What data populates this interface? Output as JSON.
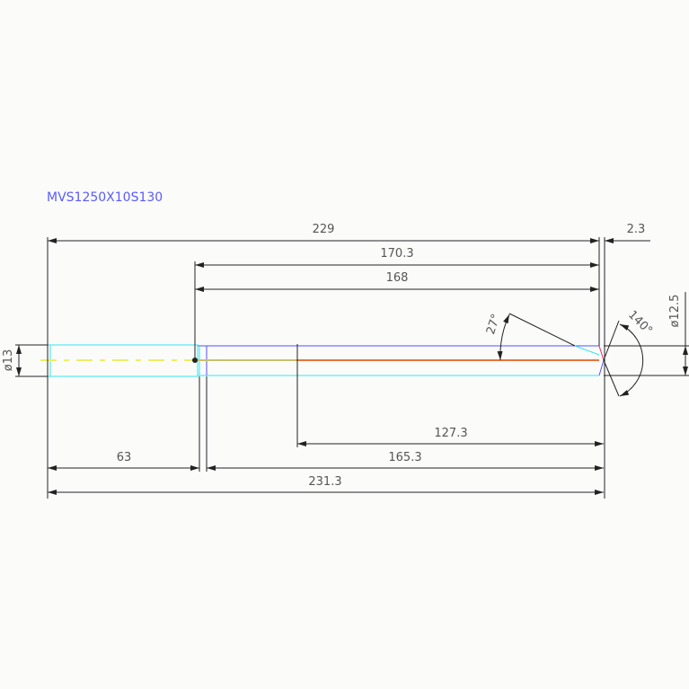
{
  "title": "MVS1250X10S130",
  "colors": {
    "outline": "#33e6f0",
    "body_top": "#5050ff",
    "centerline_shank": "#eeee66",
    "centerline_body": "#e8743a",
    "dimension": "#222222",
    "title": "#5a5aff"
  },
  "dimensions": {
    "overall_229": "229",
    "tip_2_3": "2.3",
    "len_170_3": "170.3",
    "len_168": "168",
    "len_127_3": "127.3",
    "shank_63": "63",
    "body_165_3": "165.3",
    "total_231_3": "231.3",
    "shank_dia": "ø13",
    "body_dia": "ø12.5",
    "angle_27": "27°",
    "point_140": "140°"
  }
}
